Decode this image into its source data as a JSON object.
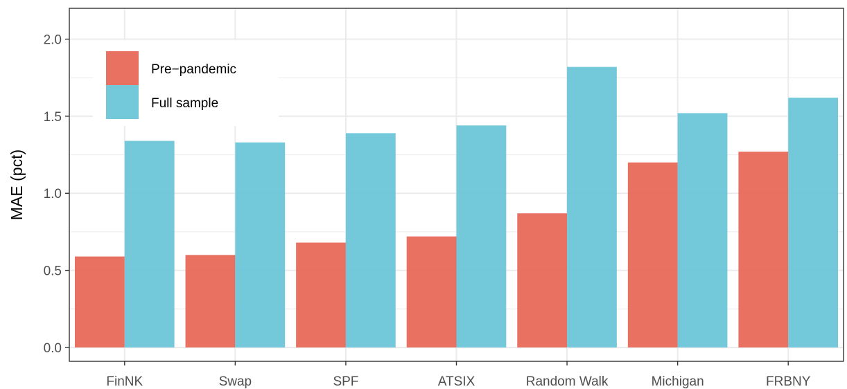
{
  "chart_data": {
    "type": "bar",
    "categories": [
      "FinNK",
      "Swap",
      "SPF",
      "ATSIX",
      "Random Walk",
      "Michigan",
      "FRBNY"
    ],
    "series": [
      {
        "name": "Pre−pandemic",
        "color": "#E8695A",
        "values": [
          0.59,
          0.6,
          0.68,
          0.72,
          0.87,
          1.2,
          1.27
        ]
      },
      {
        "name": "Full sample",
        "color": "#6BC5D8",
        "values": [
          1.34,
          1.33,
          1.39,
          1.44,
          1.82,
          1.52,
          1.62
        ]
      }
    ],
    "title": "",
    "xlabel": "",
    "ylabel": "MAE (pct)",
    "ylim": [
      -0.09,
      2.2
    ],
    "yticks": [
      "0.0",
      "0.5",
      "1.0",
      "1.5",
      "2.0"
    ],
    "grid": true,
    "legend_position": "top-left"
  }
}
